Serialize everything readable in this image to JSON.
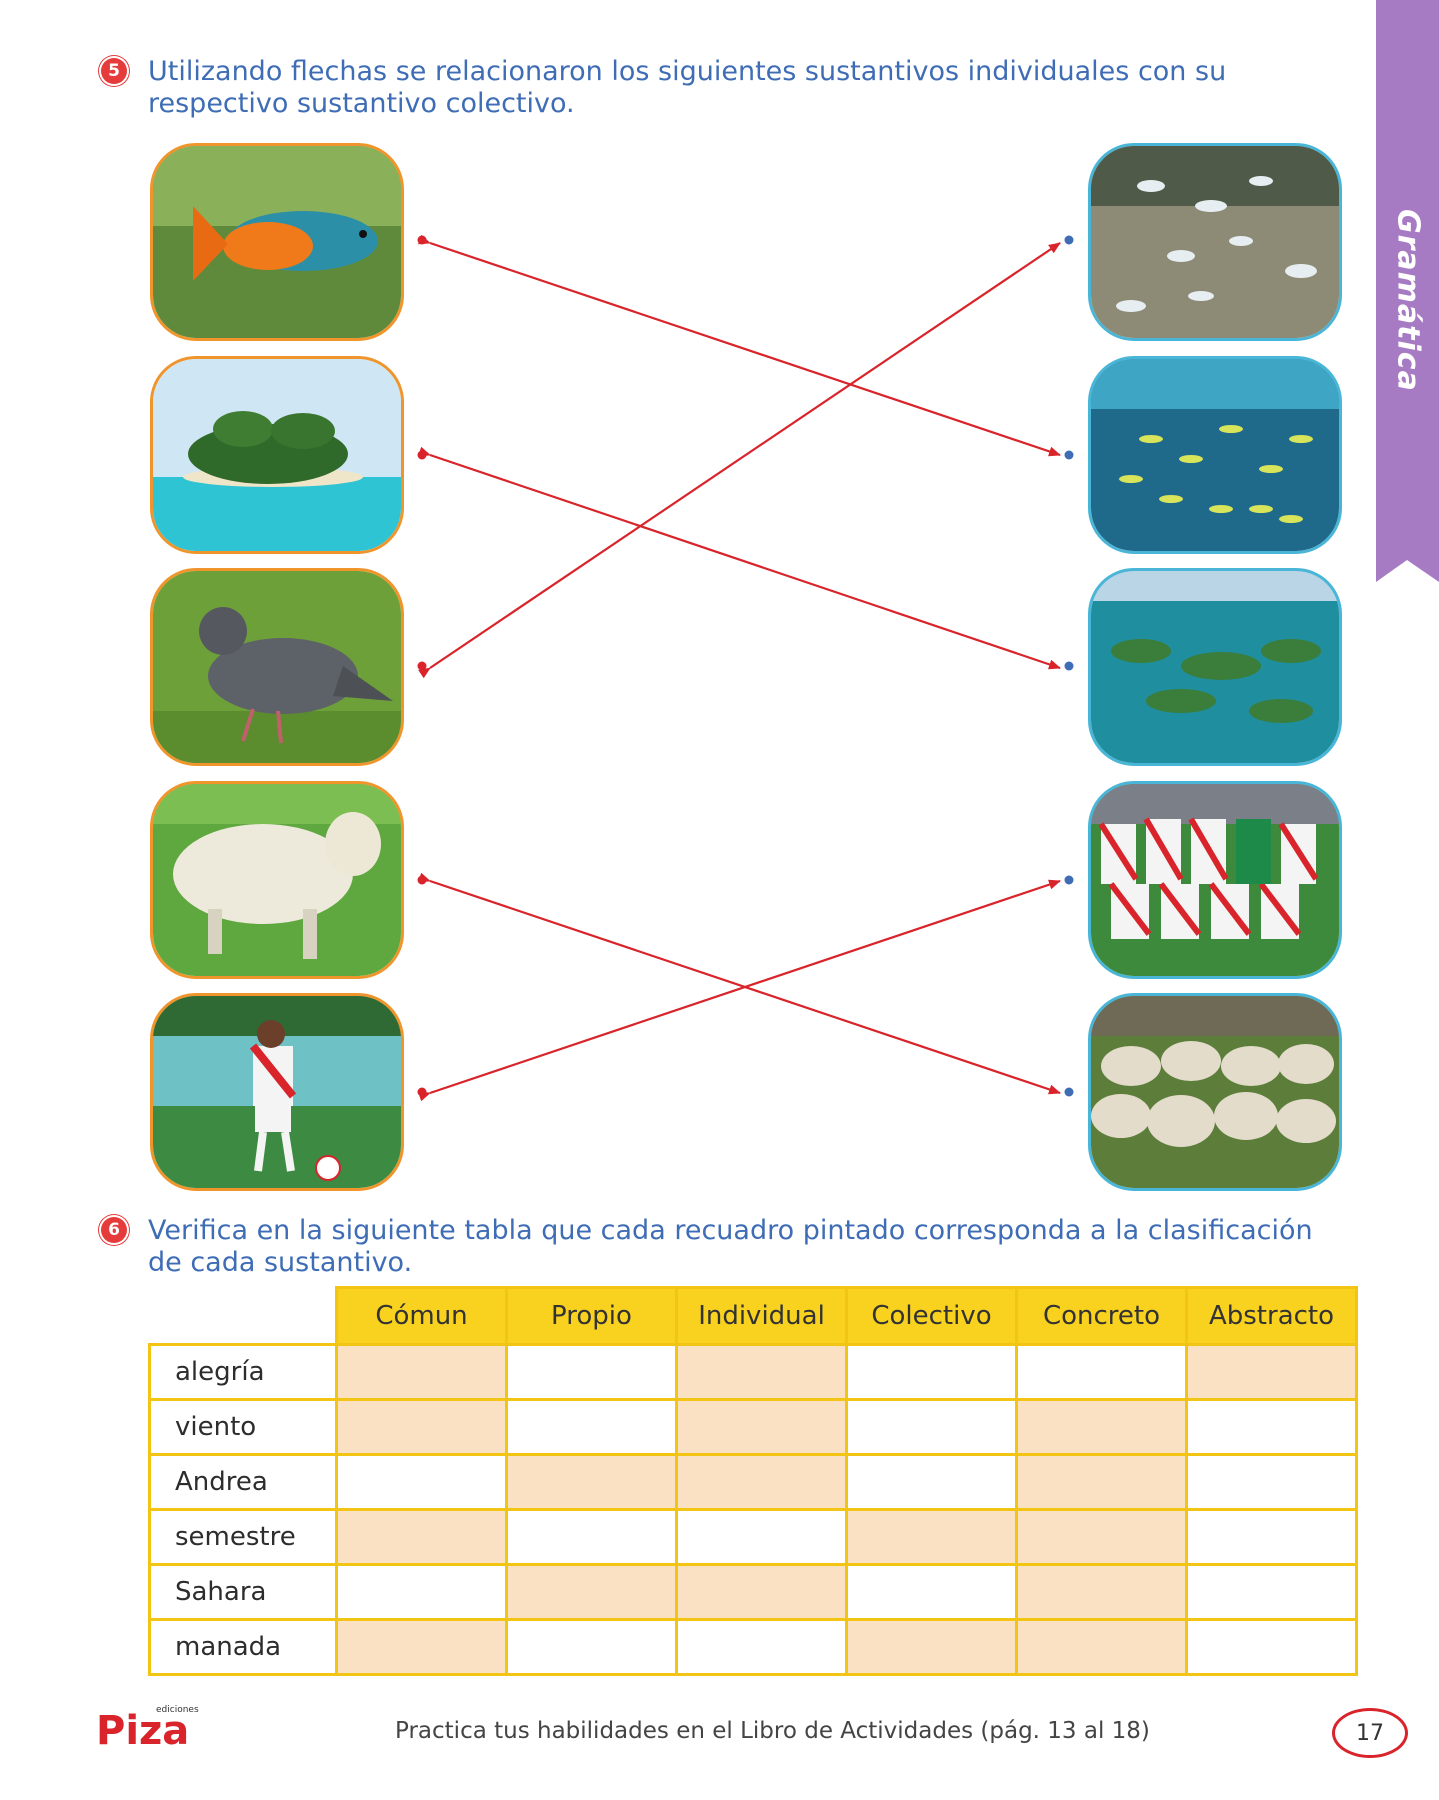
{
  "side_tab": {
    "label": "Gramática"
  },
  "question5": {
    "number": "5",
    "text": "Utilizando flechas se relacionaron los siguientes sustantivos individuales con su respectivo sustantivo colectivo."
  },
  "left_images": [
    "fish-image",
    "island-image",
    "pigeon-image",
    "sheep-image",
    "soccer-player-image"
  ],
  "right_images": [
    "flock-of-birds-image",
    "school-of-fish-image",
    "archipelago-image",
    "soccer-team-image",
    "flock-of-sheep-image"
  ],
  "connections": [
    {
      "left": "fish-image",
      "right": "school-of-fish-image"
    },
    {
      "left": "island-image",
      "right": "archipelago-image"
    },
    {
      "left": "pigeon-image",
      "right": "flock-of-birds-image"
    },
    {
      "left": "sheep-image",
      "right": "flock-of-sheep-image"
    },
    {
      "left": "soccer-player-image",
      "right": "soccer-team-image"
    }
  ],
  "question6": {
    "number": "6",
    "text": "Verifica en la siguiente tabla que cada recuadro pintado corresponda a la clasificación de cada sustantivo."
  },
  "table": {
    "headers": [
      "Cómun",
      "Propio",
      "Individual",
      "Colectivo",
      "Concreto",
      "Abstracto"
    ],
    "rows": [
      {
        "word": "alegría",
        "filled": [
          true,
          false,
          true,
          false,
          false,
          true
        ]
      },
      {
        "word": "viento",
        "filled": [
          true,
          false,
          true,
          false,
          true,
          false
        ]
      },
      {
        "word": "Andrea",
        "filled": [
          false,
          true,
          true,
          false,
          true,
          false
        ]
      },
      {
        "word": "semestre",
        "filled": [
          true,
          false,
          false,
          true,
          true,
          false
        ]
      },
      {
        "word": "Sahara",
        "filled": [
          false,
          true,
          true,
          false,
          true,
          false
        ]
      },
      {
        "word": "manada",
        "filled": [
          true,
          false,
          false,
          true,
          true,
          false
        ]
      }
    ]
  },
  "footer": {
    "publisher": "Piza ediciones",
    "text": "Practica tus habilidades en el Libro de Actividades (pág. 13 al 18)",
    "page": "17"
  },
  "colors": {
    "accent_blue": "#3f6db5",
    "arrow_red": "#d8242a",
    "tab_purple": "#a77ac4",
    "table_yellow": "#f9d21f",
    "cell_fill": "#fbe1c4"
  }
}
